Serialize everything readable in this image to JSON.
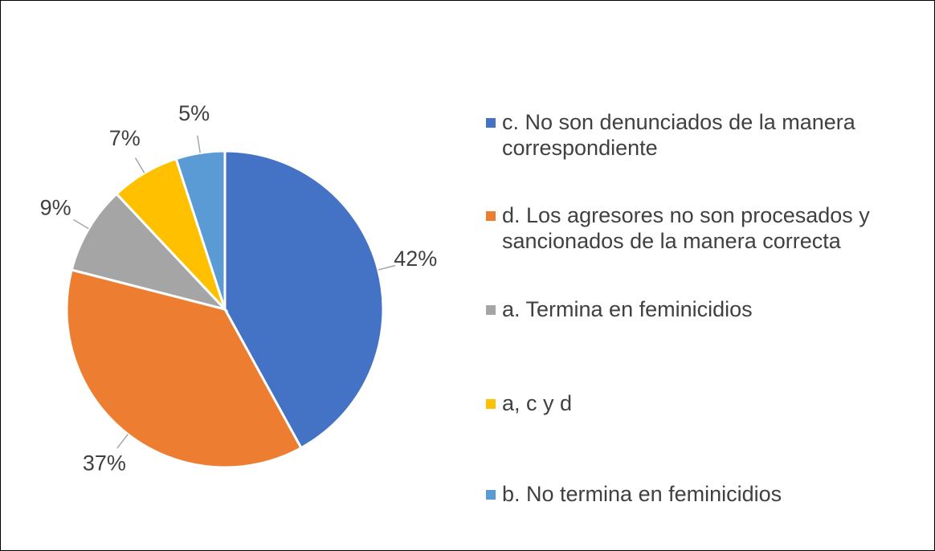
{
  "chart_data": {
    "type": "pie",
    "categories": [
      "c. No son denunciados de la manera correspondiente",
      "d. Los agresores no son procesados y sancionados de la manera correcta",
      "a. Termina en feminicidios",
      "a, c y d",
      "b. No termina en feminicidios"
    ],
    "values": [
      42,
      37,
      9,
      7,
      5
    ],
    "value_labels": [
      "42%",
      "37%",
      "9%",
      "7%",
      "5%"
    ],
    "colors": [
      "#4472c4",
      "#ed7d31",
      "#a5a5a5",
      "#ffc000",
      "#5b9bd5"
    ],
    "legend": "right"
  }
}
